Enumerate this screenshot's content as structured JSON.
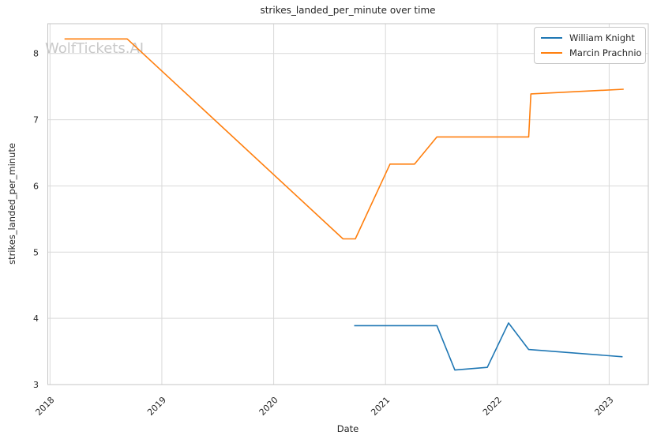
{
  "watermark": "WolfTickets.AI",
  "colors": {
    "background": "#ffffff",
    "grid": "#d9d9d9",
    "frame": "#c6c6c6",
    "text": "#262626",
    "watermark": "#c9c9c9"
  },
  "chart_data": {
    "type": "line",
    "title": "strikes_landed_per_minute over time",
    "xlabel": "Date",
    "ylabel": "strikes_landed_per_minute",
    "grid": true,
    "legend_position": "upper right",
    "xlim": [
      2017.98,
      2023.35
    ],
    "ylim": [
      3.0,
      8.45
    ],
    "x_ticks": [
      {
        "value": 2018,
        "label": "2018"
      },
      {
        "value": 2019,
        "label": "2019"
      },
      {
        "value": 2020,
        "label": "2020"
      },
      {
        "value": 2021,
        "label": "2021"
      },
      {
        "value": 2022,
        "label": "2022"
      },
      {
        "value": 2023,
        "label": "2023"
      }
    ],
    "y_ticks": [
      {
        "value": 3,
        "label": "3"
      },
      {
        "value": 4,
        "label": "4"
      },
      {
        "value": 5,
        "label": "5"
      },
      {
        "value": 6,
        "label": "6"
      },
      {
        "value": 7,
        "label": "7"
      },
      {
        "value": 8,
        "label": "8"
      }
    ],
    "series": [
      {
        "name": "William Knight",
        "color": "#1f77b4",
        "x": [
          2020.72,
          2021.46,
          2021.62,
          2021.91,
          2022.1,
          2022.28,
          2023.12
        ],
        "y": [
          3.89,
          3.89,
          3.22,
          3.26,
          3.93,
          3.53,
          3.42
        ]
      },
      {
        "name": "Marcin Prachnio",
        "color": "#ff7f0e",
        "x": [
          2018.13,
          2018.69,
          2020.62,
          2020.73,
          2021.04,
          2021.26,
          2021.46,
          2022.28,
          2022.3,
          2023.13
        ],
        "y": [
          8.22,
          8.22,
          5.2,
          5.2,
          6.33,
          6.33,
          6.74,
          6.74,
          7.39,
          7.46
        ]
      }
    ]
  }
}
